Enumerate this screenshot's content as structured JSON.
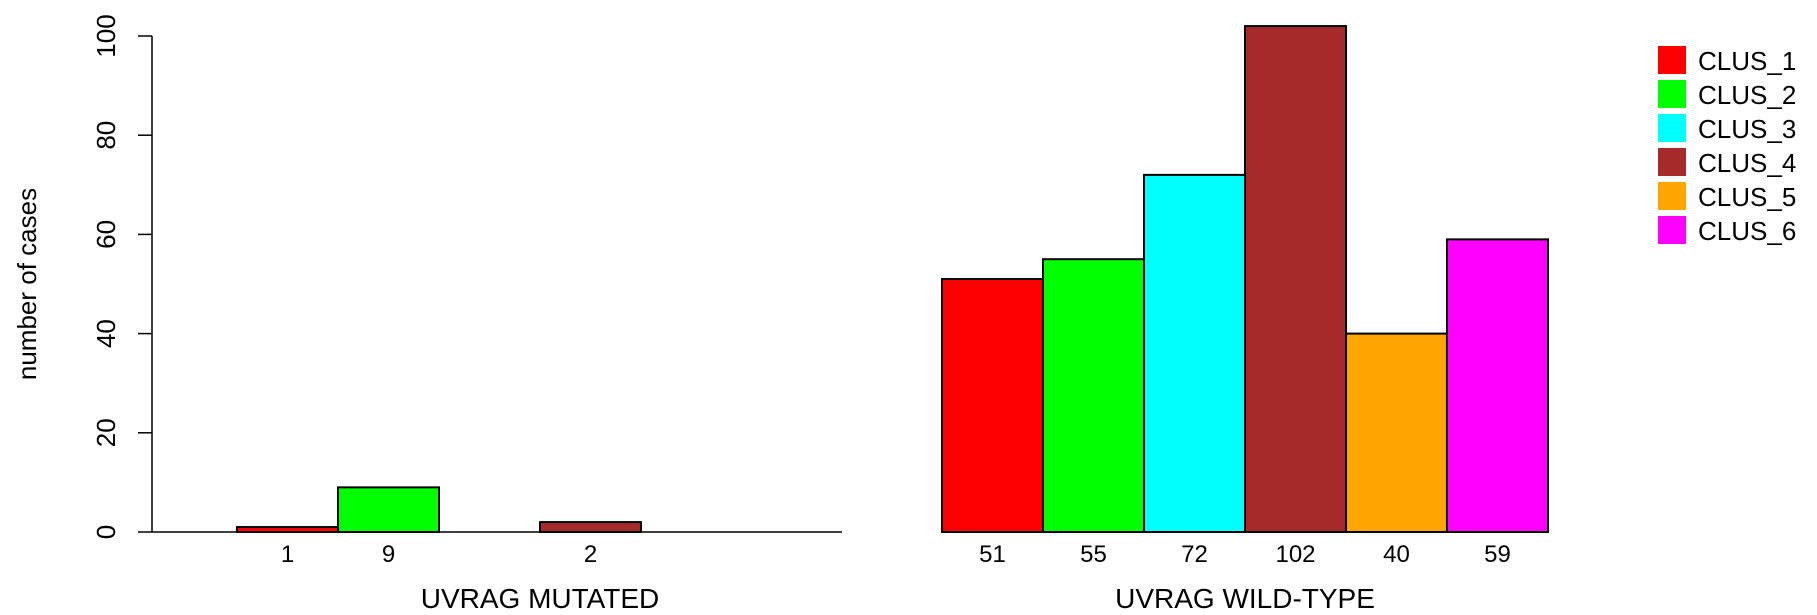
{
  "chart_data": {
    "type": "bar",
    "ylabel": "number of cases",
    "ylim": [
      0,
      100
    ],
    "yticks": [
      0,
      20,
      40,
      60,
      80,
      100
    ],
    "groups": [
      {
        "label": "UVRAG MUTATED",
        "values": [
          1,
          9,
          0,
          2,
          0,
          0
        ],
        "value_labels": [
          "1",
          "9",
          "",
          "2",
          "",
          ""
        ]
      },
      {
        "label": "UVRAG WILD-TYPE",
        "values": [
          51,
          55,
          72,
          102,
          40,
          59
        ],
        "value_labels": [
          "51",
          "55",
          "72",
          "102",
          "40",
          "59"
        ]
      }
    ],
    "series": [
      {
        "name": "CLUS_1",
        "color": "#ff0000"
      },
      {
        "name": "CLUS_2",
        "color": "#00ff00"
      },
      {
        "name": "CLUS_3",
        "color": "#00ffff"
      },
      {
        "name": "CLUS_4",
        "color": "#a52a2a"
      },
      {
        "name": "CLUS_5",
        "color": "#ffa500"
      },
      {
        "name": "CLUS_6",
        "color": "#ff00ff"
      }
    ],
    "legend_position": "top-right",
    "grid": false
  }
}
